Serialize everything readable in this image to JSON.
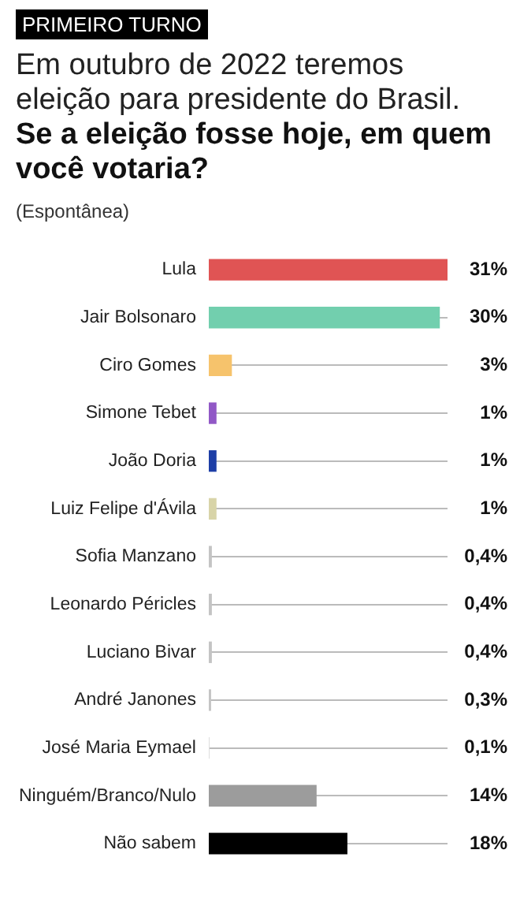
{
  "chart_data": {
    "type": "bar",
    "orientation": "horizontal",
    "annotations": [
      "PRIMEIRO TURNO",
      "(Espontânea)"
    ],
    "title": "Em outubro de 2022 teremos eleição para presidente do Brasil.",
    "subtitle": "Se a eleição fosse hoje, em quem você votaria?",
    "categories": [
      "Lula",
      "Jair Bolsonaro",
      "Ciro Gomes",
      "Simone Tebet",
      "João Doria",
      "Luiz Felipe d'Ávila",
      "Sofia Manzano",
      "Leonardo Péricles",
      "Luciano Bivar",
      "André Janones",
      "José Maria Eymael",
      "Ninguém/Branco/Nulo",
      "Não sabem"
    ],
    "values": [
      31,
      30,
      3,
      1,
      1,
      1,
      0.4,
      0.4,
      0.4,
      0.3,
      0.1,
      14,
      18
    ],
    "colors": [
      "#e05454",
      "#72cfae",
      "#f6c36c",
      "#9158c6",
      "#1d3ea6",
      "#d8d4a8",
      "#c4c4c4",
      "#c4c4c4",
      "#c4c4c4",
      "#c4c4c4",
      "#dddddd",
      "#9c9c9c",
      "#000000"
    ],
    "value_labels": [
      "31%",
      "30%",
      "3%",
      "1%",
      "1%",
      "1%",
      "0,4%",
      "0,4%",
      "0,4%",
      "0,3%",
      "0,1%",
      "14%",
      "18%"
    ],
    "grid": "y",
    "legend": false
  }
}
